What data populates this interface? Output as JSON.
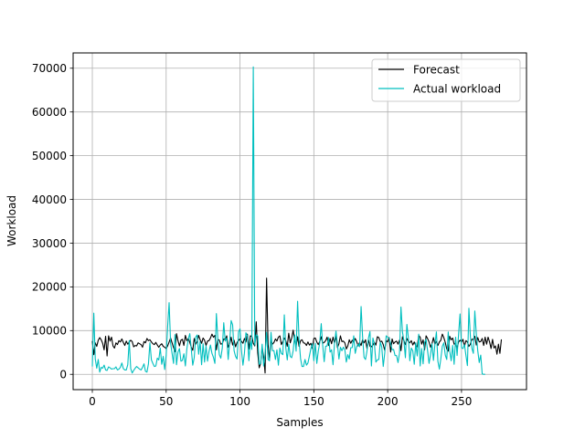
{
  "chart_data": {
    "type": "line",
    "title": "",
    "xlabel": "Samples",
    "ylabel": "Workload",
    "xlim": [
      -13,
      294
    ],
    "ylim": [
      -3500,
      73500
    ],
    "xticks": [
      0,
      50,
      100,
      150,
      200,
      250
    ],
    "yticks": [
      0,
      10000,
      20000,
      30000,
      40000,
      50000,
      60000,
      70000
    ],
    "grid": true,
    "legend_position": "top-right",
    "series": [
      {
        "name": "Forecast",
        "color": "#000000",
        "values": [
          7600,
          4500,
          7200,
          6400,
          7800,
          8400,
          7900,
          7100,
          5600,
          8700,
          4200,
          8800,
          7600,
          8500,
          6500,
          6000,
          7200,
          6800,
          7700,
          7400,
          8100,
          7300,
          6600,
          7600,
          6900,
          7400,
          7800,
          7500,
          6300,
          6600,
          6500,
          7200,
          7000,
          6800,
          6200,
          7500,
          7200,
          8200,
          7700,
          7900,
          7400,
          7000,
          6800,
          7300,
          6700,
          6200,
          6700,
          7000,
          6400,
          6200,
          5900,
          6500,
          7400,
          8300,
          7200,
          6100,
          5200,
          9300,
          7700,
          6500,
          7800,
          8000,
          6600,
          8900,
          7700,
          8200,
          7300,
          6200,
          5500,
          8200,
          6900,
          7500,
          8900,
          7900,
          7100,
          8300,
          7800,
          6600,
          7600,
          7700,
          8300,
          9200,
          8500,
          8900,
          5600,
          8000,
          7800,
          6900,
          7000,
          8100,
          7900,
          8800,
          6200,
          6900,
          8500,
          6700,
          7800,
          6300,
          7300,
          7700,
          8100,
          7500,
          7100,
          8200,
          7400,
          9200,
          5800,
          8800,
          8700,
          7100,
          6500,
          12000,
          4900,
          1500,
          2500,
          6200,
          4000,
          300,
          22000,
          6900,
          3400,
          7700,
          6900,
          7300,
          8100,
          7600,
          8500,
          8800,
          6800,
          7500,
          8300,
          7700,
          6400,
          9400,
          7200,
          8300,
          10100,
          7700,
          6500,
          8600,
          6400,
          7700,
          7900,
          7200,
          7100,
          6600,
          7400,
          6700,
          7100,
          5900,
          8200,
          8300,
          7400,
          6800,
          7500,
          8600,
          7100,
          7300,
          7700,
          8500,
          6600,
          8200,
          7000,
          8500,
          7200,
          8700,
          6100,
          7000,
          8800,
          7500,
          7600,
          7200,
          5800,
          6500,
          7900,
          7100,
          7800,
          7400,
          8200,
          7500,
          6500,
          7300,
          6600,
          7900,
          7200,
          7900,
          5900,
          7900,
          6400,
          6300,
          6700,
          7300,
          6700,
          8600,
          8400,
          7400,
          7600,
          6800,
          5500,
          7700,
          7400,
          8400,
          5100,
          8100,
          7000,
          7400,
          7600,
          6900,
          7800,
          5400,
          8600,
          7700,
          6800,
          8200,
          7500,
          7200,
          7700,
          6700,
          7400,
          6600,
          6300,
          8900,
          8500,
          6900,
          7900,
          5600,
          8800,
          8200,
          7400,
          6200,
          7000,
          8400,
          6900,
          7500,
          6600,
          7400,
          7800,
          9200,
          8400,
          7300,
          5800,
          5300,
          8700,
          7900,
          8300,
          6900,
          7100,
          5900,
          7400,
          7800,
          7400,
          8000,
          6400,
          7700,
          7400,
          6400,
          6900,
          8000,
          8000,
          8700,
          6700,
          8400,
          7400,
          7500,
          8200,
          6600,
          8500,
          6900,
          8500,
          7400,
          5900,
          8000,
          6000,
          6500,
          4600,
          6900,
          4800,
          8000
        ]
      },
      {
        "name": "Actual workload",
        "color": "#00bfbf",
        "values": [
          1800,
          14000,
          3500,
          1400,
          3400,
          500,
          1600,
          1400,
          2100,
          1000,
          900,
          1700,
          1500,
          1200,
          1300,
          1300,
          1700,
          1000,
          1200,
          1600,
          2600,
          1300,
          1000,
          1000,
          2200,
          7700,
          1300,
          300,
          900,
          1400,
          1800,
          1500,
          1200,
          1000,
          1600,
          2400,
          700,
          500,
          2400,
          7200,
          3300,
          2500,
          1800,
          1900,
          3700,
          3300,
          6000,
          2300,
          4100,
          1100,
          4300,
          10900,
          16400,
          7100,
          4800,
          2500,
          9100,
          2200,
          5100,
          5900,
          3000,
          3200,
          4700,
          1900,
          5800,
          8100,
          9300,
          5800,
          2100,
          3800,
          8500,
          9000,
          4600,
          7500,
          2200,
          7000,
          2800,
          6500,
          3000,
          5200,
          6700,
          4800,
          3900,
          2500,
          13900,
          8000,
          4500,
          3700,
          6000,
          11800,
          7600,
          8300,
          3400,
          7400,
          12300,
          11300,
          5400,
          4100,
          3500,
          9700,
          10400,
          5500,
          2100,
          4800,
          9500,
          8800,
          3100,
          7600,
          5700,
          70300,
          6700,
          9000,
          8800,
          2300,
          2500,
          6900,
          1900,
          4700,
          9600,
          3400,
          3100,
          9600,
          5400,
          5400,
          3400,
          5600,
          2100,
          6000,
          4800,
          4500,
          13600,
          6100,
          3300,
          6900,
          4100,
          3800,
          5400,
          9000,
          5300,
          16700,
          7800,
          3600,
          1800,
          1800,
          3400,
          2100,
          2600,
          4200,
          5900,
          7000,
          3100,
          7100,
          2500,
          5300,
          7200,
          11600,
          6600,
          2900,
          6400,
          6500,
          8400,
          5100,
          5600,
          2200,
          7100,
          9900,
          6800,
          3500,
          6200,
          5400,
          6200,
          5600,
          2800,
          4500,
          3500,
          6100,
          6100,
          8800,
          4800,
          6300,
          6900,
          6300,
          15500,
          8700,
          3900,
          3400,
          5400,
          8300,
          9800,
          1900,
          8300,
          7000,
          2800,
          3300,
          3400,
          7400,
          6200,
          1800,
          4800,
          8800,
          8500,
          8200,
          7100,
          5600,
          5700,
          4300,
          4300,
          2700,
          4800,
          15400,
          9700,
          7600,
          3800,
          11400,
          8400,
          3100,
          6000,
          5400,
          2300,
          7200,
          4200,
          9200,
          1900,
          5900,
          2400,
          7300,
          8000,
          5500,
          2500,
          4500,
          7000,
          3200,
          6900,
          9700,
          3000,
          1200,
          3600,
          6400,
          7200,
          4400,
          3400,
          9700,
          5300,
          3100,
          6600,
          2300,
          8500,
          4300,
          9100,
          13800,
          6100,
          5900,
          6800,
          4300,
          2000,
          15100,
          8600,
          6000,
          4800,
          14500,
          9300,
          5400,
          2700,
          4400,
          100,
          0,
          0
        ]
      }
    ]
  }
}
